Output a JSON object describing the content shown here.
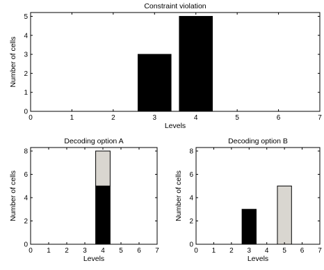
{
  "chart_data": [
    {
      "type": "bar",
      "title": "Constraint violation",
      "xlabel": "Levels",
      "ylabel": "Number of cells",
      "xlim": [
        0,
        7
      ],
      "ylim": [
        0,
        5.2
      ],
      "xticks": [
        "0",
        "1",
        "2",
        "3",
        "4",
        "5",
        "6",
        "7"
      ],
      "yticks": [
        "0",
        "1",
        "2",
        "3",
        "4",
        "5"
      ],
      "stacked": true,
      "categories": [
        3,
        4
      ],
      "series": [
        {
          "color": "#000000",
          "values": [
            3,
            5
          ]
        }
      ],
      "grid": false
    },
    {
      "type": "bar",
      "title": "Decoding option A",
      "xlabel": "Levels",
      "ylabel": "Number of cells",
      "xlim": [
        0,
        7
      ],
      "ylim": [
        0,
        8.3
      ],
      "xticks": [
        "0",
        "1",
        "2",
        "3",
        "4",
        "5",
        "6",
        "7"
      ],
      "yticks": [
        "0",
        "2",
        "4",
        "6",
        "8"
      ],
      "stacked": true,
      "categories": [
        4
      ],
      "series": [
        {
          "color": "#000000",
          "values": [
            5
          ]
        },
        {
          "color": "#d9d6d0",
          "values": [
            3
          ]
        }
      ],
      "grid": false
    },
    {
      "type": "bar",
      "title": "Decoding option B",
      "xlabel": "Levels",
      "ylabel": "Number of cells",
      "xlim": [
        0,
        7
      ],
      "ylim": [
        0,
        8.3
      ],
      "xticks": [
        "0",
        "1",
        "2",
        "3",
        "4",
        "5",
        "6",
        "7"
      ],
      "yticks": [
        "0",
        "2",
        "4",
        "6",
        "8"
      ],
      "stacked": true,
      "categories": [
        3,
        5
      ],
      "series": [
        {
          "color": "#000000",
          "values": [
            3,
            0
          ]
        },
        {
          "color": "#d9d6d0",
          "values": [
            0,
            5
          ]
        }
      ],
      "grid": false
    }
  ]
}
